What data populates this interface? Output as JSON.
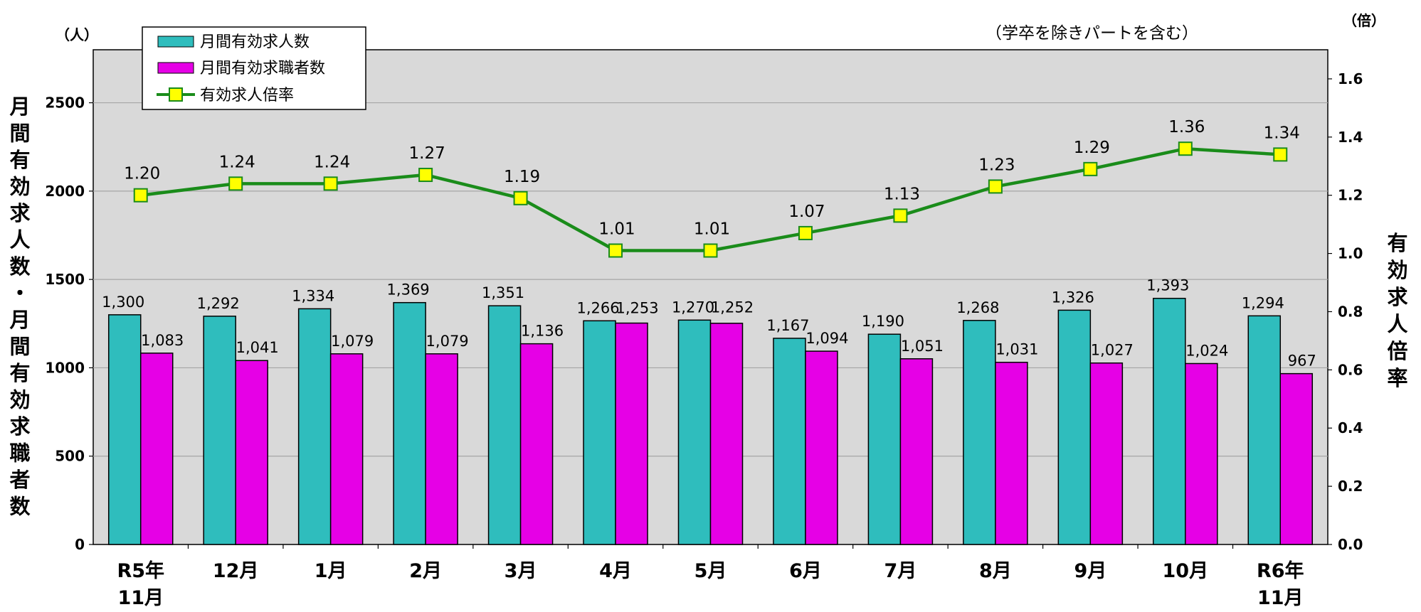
{
  "chart_data": {
    "type": "bar",
    "combo": "bar-bar-line with secondary y-axis",
    "note": "（学卒を除きパートを含む）",
    "left_unit": "（人）",
    "right_unit": "（倍）",
    "ylabel_left": "月間有効求人数・月間有効求職者数",
    "ylabel_right": "有効求人倍率",
    "categories": [
      [
        "R5年",
        "11月"
      ],
      [
        "12月"
      ],
      [
        "1月"
      ],
      [
        "2月"
      ],
      [
        "3月"
      ],
      [
        "4月"
      ],
      [
        "5月"
      ],
      [
        "6月"
      ],
      [
        "7月"
      ],
      [
        "8月"
      ],
      [
        "9月"
      ],
      [
        "10月"
      ],
      [
        "R6年",
        "11月"
      ]
    ],
    "ylim": [
      0,
      2800
    ],
    "yticks": [
      "0",
      "500",
      "1000",
      "1500",
      "2000",
      "2500"
    ],
    "y2lim": [
      0,
      1.7
    ],
    "y2ticks": [
      "0.0",
      "0.2",
      "0.4",
      "0.6",
      "0.8",
      "1.0",
      "1.2",
      "1.4",
      "1.6"
    ],
    "grid": true,
    "legend_position": "top-left",
    "series": [
      {
        "name": "月間有効求人数",
        "kind": "bar",
        "axis": "left",
        "color": "#2fbdbd",
        "values": [
          1300,
          1292,
          1334,
          1369,
          1351,
          1266,
          1270,
          1167,
          1190,
          1268,
          1326,
          1393,
          1294
        ],
        "labels": [
          "1,300",
          "1,292",
          "1,334",
          "1,369",
          "1,351",
          "1,266",
          "1,270",
          "1,167",
          "1,190",
          "1,268",
          "1,326",
          "1,393",
          "1,294"
        ]
      },
      {
        "name": "月間有効求職者数",
        "kind": "bar",
        "axis": "left",
        "color": "#e600e6",
        "values": [
          1083,
          1041,
          1079,
          1079,
          1136,
          1253,
          1252,
          1094,
          1051,
          1031,
          1027,
          1024,
          967
        ],
        "labels": [
          "1,083",
          "1,041",
          "1,079",
          "1,079",
          "1,136",
          "1,253",
          "1,252",
          "1,094",
          "1,051",
          "1,031",
          "1,027",
          "1,024",
          "967"
        ]
      },
      {
        "name": "有効求人倍率",
        "kind": "line",
        "axis": "right",
        "color": "#1a8c1a",
        "marker_color": "#ffff00",
        "values": [
          1.2,
          1.24,
          1.24,
          1.27,
          1.19,
          1.01,
          1.01,
          1.07,
          1.13,
          1.23,
          1.29,
          1.36,
          1.34
        ],
        "labels": [
          "1.20",
          "1.24",
          "1.24",
          "1.27",
          "1.19",
          "1.01",
          "1.01",
          "1.07",
          "1.13",
          "1.23",
          "1.29",
          "1.36",
          "1.34"
        ]
      }
    ]
  }
}
